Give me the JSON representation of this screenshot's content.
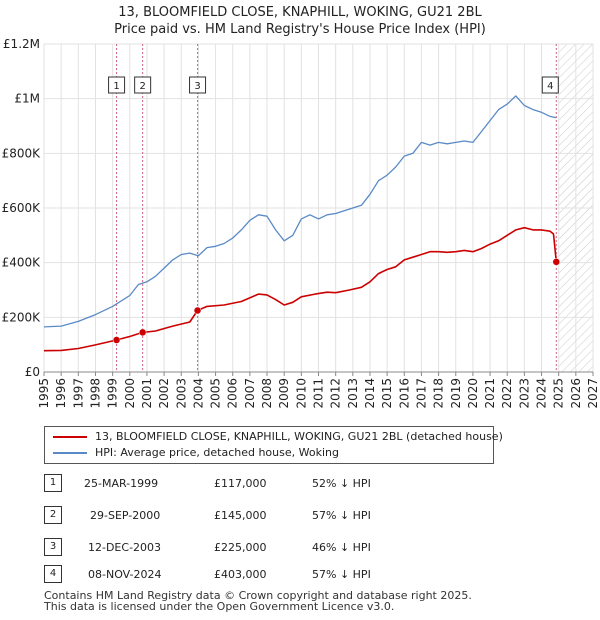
{
  "chart_data": {
    "type": "line",
    "title": "13, BLOOMFIELD CLOSE, KNAPHILL, WOKING, GU21 2BL",
    "subtitle": "Price paid vs. HM Land Registry's House Price Index (HPI)",
    "xlim": [
      1995,
      2027
    ],
    "ylim": [
      0,
      1200000
    ],
    "xticks": [
      "1995",
      "1996",
      "1997",
      "1998",
      "1999",
      "2000",
      "2001",
      "2002",
      "2003",
      "2004",
      "2005",
      "2006",
      "2007",
      "2008",
      "2009",
      "2010",
      "2011",
      "2012",
      "2013",
      "2014",
      "2015",
      "2016",
      "2017",
      "2018",
      "2019",
      "2020",
      "2021",
      "2022",
      "2023",
      "2024",
      "2025",
      "2026",
      "2027"
    ],
    "yticks": [
      {
        "label": "£0",
        "value": 0
      },
      {
        "label": "£200K",
        "value": 200000
      },
      {
        "label": "£400K",
        "value": 400000
      },
      {
        "label": "£600K",
        "value": 600000
      },
      {
        "label": "£800K",
        "value": 800000
      },
      {
        "label": "£1M",
        "value": 1000000
      },
      {
        "label": "£1.2M",
        "value": 1200000
      }
    ],
    "forecast_start": 2025.0,
    "colors": {
      "property": "#cc0000",
      "hpi": "#5a8ac6",
      "vline": "#d06080",
      "shade": "#dde6f4"
    },
    "series": [
      {
        "name": "13, BLOOMFIELD CLOSE, KNAPHILL, WOKING, GU21 2BL (detached house)",
        "color": "#cc0000",
        "points": [
          [
            1995.0,
            78000
          ],
          [
            1996.0,
            79000
          ],
          [
            1997.0,
            86000
          ],
          [
            1998.0,
            99000
          ],
          [
            1999.23,
            117000
          ],
          [
            2000.0,
            130000
          ],
          [
            2000.75,
            145000
          ],
          [
            2001.5,
            150000
          ],
          [
            2002.5,
            168000
          ],
          [
            2003.5,
            183000
          ],
          [
            2003.95,
            225000
          ],
          [
            2004.5,
            240000
          ],
          [
            2005.5,
            245000
          ],
          [
            2006.5,
            258000
          ],
          [
            2007.5,
            285000
          ],
          [
            2008.0,
            282000
          ],
          [
            2008.5,
            265000
          ],
          [
            2009.0,
            245000
          ],
          [
            2009.5,
            255000
          ],
          [
            2010.0,
            275000
          ],
          [
            2010.8,
            285000
          ],
          [
            2011.5,
            292000
          ],
          [
            2012.0,
            290000
          ],
          [
            2012.8,
            300000
          ],
          [
            2013.5,
            310000
          ],
          [
            2014.0,
            330000
          ],
          [
            2014.5,
            360000
          ],
          [
            2015.0,
            375000
          ],
          [
            2015.5,
            385000
          ],
          [
            2016.0,
            410000
          ],
          [
            2016.5,
            420000
          ],
          [
            2017.0,
            430000
          ],
          [
            2017.5,
            440000
          ],
          [
            2018.0,
            440000
          ],
          [
            2018.5,
            438000
          ],
          [
            2019.0,
            440000
          ],
          [
            2019.5,
            445000
          ],
          [
            2020.0,
            440000
          ],
          [
            2020.5,
            452000
          ],
          [
            2021.0,
            468000
          ],
          [
            2021.5,
            480000
          ],
          [
            2022.0,
            500000
          ],
          [
            2022.5,
            520000
          ],
          [
            2023.0,
            528000
          ],
          [
            2023.5,
            520000
          ],
          [
            2024.0,
            520000
          ],
          [
            2024.5,
            515000
          ],
          [
            2024.7,
            505000
          ],
          [
            2024.86,
            403000
          ]
        ]
      },
      {
        "name": "HPI: Average price, detached house, Woking",
        "color": "#5a8ac6",
        "points": [
          [
            1995.0,
            165000
          ],
          [
            1996.0,
            168000
          ],
          [
            1997.0,
            185000
          ],
          [
            1998.0,
            210000
          ],
          [
            1999.0,
            240000
          ],
          [
            2000.0,
            280000
          ],
          [
            2000.5,
            320000
          ],
          [
            2001.0,
            330000
          ],
          [
            2001.5,
            350000
          ],
          [
            2002.0,
            380000
          ],
          [
            2002.5,
            410000
          ],
          [
            2003.0,
            430000
          ],
          [
            2003.5,
            435000
          ],
          [
            2004.0,
            425000
          ],
          [
            2004.5,
            455000
          ],
          [
            2005.0,
            460000
          ],
          [
            2005.5,
            470000
          ],
          [
            2006.0,
            490000
          ],
          [
            2006.5,
            520000
          ],
          [
            2007.0,
            555000
          ],
          [
            2007.5,
            575000
          ],
          [
            2008.0,
            570000
          ],
          [
            2008.5,
            520000
          ],
          [
            2009.0,
            480000
          ],
          [
            2009.5,
            500000
          ],
          [
            2010.0,
            560000
          ],
          [
            2010.5,
            575000
          ],
          [
            2011.0,
            560000
          ],
          [
            2011.5,
            575000
          ],
          [
            2012.0,
            580000
          ],
          [
            2012.5,
            590000
          ],
          [
            2013.0,
            600000
          ],
          [
            2013.5,
            610000
          ],
          [
            2014.0,
            650000
          ],
          [
            2014.5,
            700000
          ],
          [
            2015.0,
            720000
          ],
          [
            2015.5,
            750000
          ],
          [
            2016.0,
            790000
          ],
          [
            2016.5,
            800000
          ],
          [
            2017.0,
            840000
          ],
          [
            2017.5,
            830000
          ],
          [
            2018.0,
            840000
          ],
          [
            2018.5,
            835000
          ],
          [
            2019.0,
            840000
          ],
          [
            2019.5,
            845000
          ],
          [
            2020.0,
            840000
          ],
          [
            2020.5,
            880000
          ],
          [
            2021.0,
            920000
          ],
          [
            2021.5,
            960000
          ],
          [
            2022.0,
            980000
          ],
          [
            2022.5,
            1010000
          ],
          [
            2023.0,
            975000
          ],
          [
            2023.5,
            960000
          ],
          [
            2024.0,
            950000
          ],
          [
            2024.5,
            935000
          ],
          [
            2024.86,
            930000
          ]
        ]
      }
    ],
    "sales": [
      {
        "id": "1",
        "x": 1999.23,
        "y": 117000
      },
      {
        "id": "2",
        "x": 2000.75,
        "y": 145000
      },
      {
        "id": "3",
        "x": 2003.95,
        "y": 225000
      },
      {
        "id": "4",
        "x": 2024.86,
        "y": 403000
      }
    ]
  },
  "legend": {
    "property": "13, BLOOMFIELD CLOSE, KNAPHILL, WOKING, GU21 2BL (detached house)",
    "hpi": "HPI: Average price, detached house, Woking"
  },
  "transactions": [
    {
      "id": "1",
      "date": "25-MAR-1999",
      "price": "£117,000",
      "hpi": "52% ↓ HPI"
    },
    {
      "id": "2",
      "date": "29-SEP-2000",
      "price": "£145,000",
      "hpi": "57% ↓ HPI"
    },
    {
      "id": "3",
      "date": "12-DEC-2003",
      "price": "£225,000",
      "hpi": "46% ↓ HPI"
    },
    {
      "id": "4",
      "date": "08-NOV-2024",
      "price": "£403,000",
      "hpi": "57% ↓ HPI"
    }
  ],
  "footer": {
    "line1": "Contains HM Land Registry data © Crown copyright and database right 2025.",
    "line2": "This data is licensed under the Open Government Licence v3.0."
  }
}
